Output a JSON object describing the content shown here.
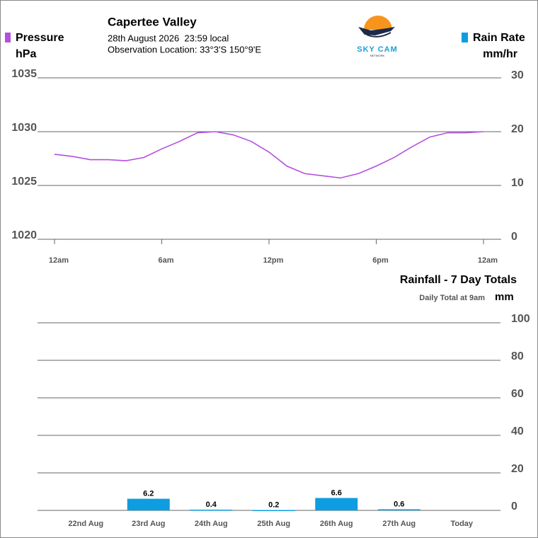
{
  "header": {
    "title": "Capertee Valley",
    "date": "28th August 2026  23:59 local",
    "location": "Observation Location: 33°3'S 150°9'E"
  },
  "logo": {
    "name": "SKY CAM",
    "tagline": "NETWORK"
  },
  "chart_data": [
    {
      "type": "line",
      "x": [
        0,
        1,
        2,
        3,
        4,
        5,
        6,
        7,
        8,
        9,
        10,
        11,
        12,
        13,
        14,
        15,
        16,
        17,
        18,
        19,
        20,
        21,
        22,
        23,
        24
      ],
      "series": [
        {
          "name": "Pressure",
          "color": "#b44fe0",
          "values": [
            1027.9,
            1027.7,
            1027.4,
            1027.4,
            1027.3,
            1027.6,
            1028.4,
            1029.1,
            1029.9,
            1030.0,
            1029.7,
            1029.1,
            1028.1,
            1026.8,
            1026.1,
            1025.9,
            1025.7,
            1026.1,
            1026.8,
            1027.6,
            1028.6,
            1029.5,
            1029.9,
            1029.9,
            1030.0
          ]
        }
      ],
      "yunit": "hPa",
      "xlim": [
        0,
        24
      ],
      "xticks": [
        {
          "value": 0,
          "label": "12am"
        },
        {
          "value": 6,
          "label": "6am"
        },
        {
          "value": 12,
          "label": "12pm"
        },
        {
          "value": 18,
          "label": "6pm"
        },
        {
          "value": 24,
          "label": "12am"
        }
      ],
      "ylim": [
        1020,
        1035
      ],
      "yticks": [
        1020,
        1025,
        1030,
        1035
      ],
      "y2label": "Rain Rate",
      "y2unit": "mm/hr",
      "y2color": "#0d9de0",
      "y2lim": [
        0,
        30
      ],
      "y2ticks": [
        0,
        10,
        20,
        30
      ],
      "grid": true
    },
    {
      "type": "bar",
      "title": "Rainfall - 7 Day Totals",
      "subtitle": "Daily Total at 9am",
      "ylabel": "mm",
      "categories": [
        "22nd Aug",
        "23rd Aug",
        "24th Aug",
        "25th Aug",
        "26th Aug",
        "27th Aug",
        "Today"
      ],
      "values": [
        null,
        6.2,
        0.4,
        0.2,
        6.6,
        0.6,
        null
      ],
      "color": "#0d9de0",
      "ylim": [
        0,
        100
      ],
      "yticks": [
        0,
        20,
        40,
        60,
        80,
        100
      ],
      "grid": true
    }
  ]
}
